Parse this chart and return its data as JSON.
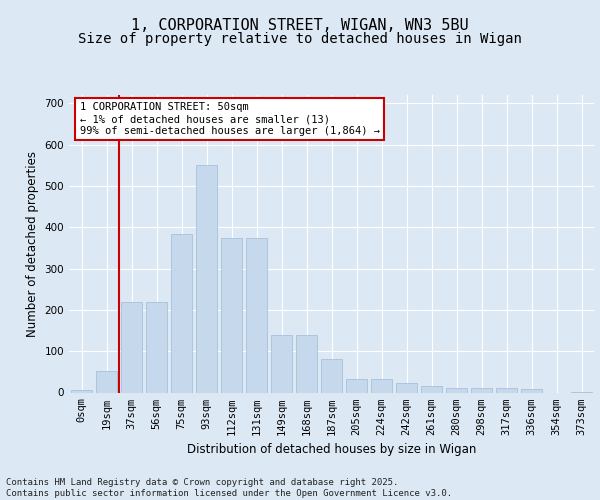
{
  "title_line1": "1, CORPORATION STREET, WIGAN, WN3 5BU",
  "title_line2": "Size of property relative to detached houses in Wigan",
  "xlabel": "Distribution of detached houses by size in Wigan",
  "ylabel": "Number of detached properties",
  "footer": "Contains HM Land Registry data © Crown copyright and database right 2025.\nContains public sector information licensed under the Open Government Licence v3.0.",
  "bar_labels": [
    "0sqm",
    "19sqm",
    "37sqm",
    "56sqm",
    "75sqm",
    "93sqm",
    "112sqm",
    "131sqm",
    "149sqm",
    "168sqm",
    "187sqm",
    "205sqm",
    "224sqm",
    "242sqm",
    "261sqm",
    "280sqm",
    "298sqm",
    "317sqm",
    "336sqm",
    "354sqm",
    "373sqm"
  ],
  "bar_values": [
    5,
    52,
    220,
    220,
    383,
    550,
    375,
    375,
    140,
    140,
    80,
    33,
    33,
    22,
    16,
    10,
    10,
    10,
    8,
    0,
    2
  ],
  "bar_color": "#c5d8ec",
  "bar_edge_color": "#a0bcd6",
  "vline_x": 2,
  "annotation_text": "1 CORPORATION STREET: 50sqm\n← 1% of detached houses are smaller (13)\n99% of semi-detached houses are larger (1,864) →",
  "annotation_box_facecolor": "#ffffff",
  "annotation_box_edgecolor": "#cc0000",
  "vline_color": "#cc0000",
  "ylim": [
    0,
    720
  ],
  "yticks": [
    0,
    100,
    200,
    300,
    400,
    500,
    600,
    700
  ],
  "bg_color": "#dce9f5",
  "grid_color": "#ffffff",
  "title_fontsize": 11,
  "subtitle_fontsize": 10,
  "axis_label_fontsize": 8.5,
  "tick_fontsize": 7.5,
  "footer_fontsize": 6.5,
  "annot_fontsize": 7.5
}
